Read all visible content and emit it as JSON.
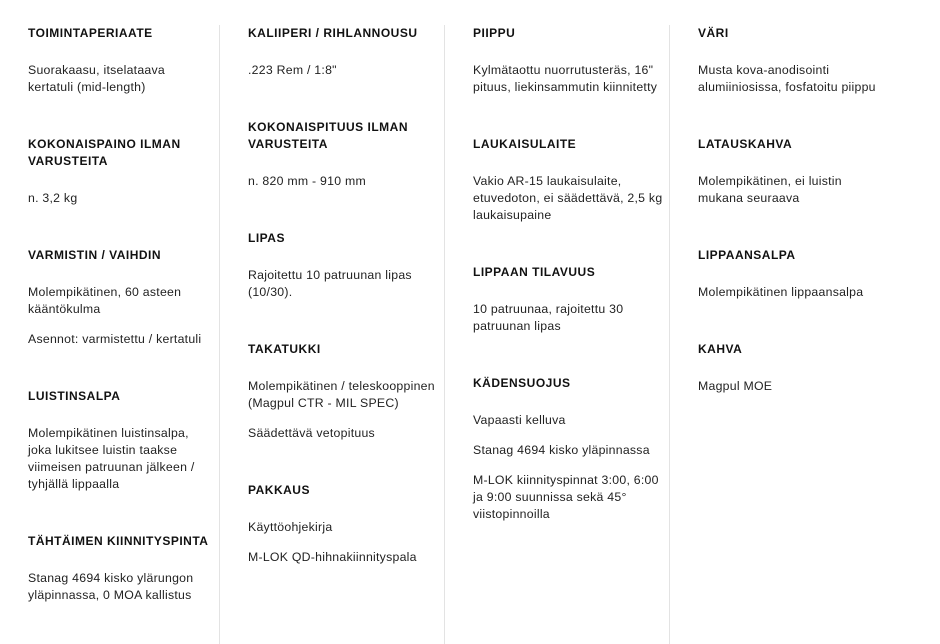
{
  "columns": [
    {
      "sections": [
        {
          "heading": "TOIMINTAPERIAATE",
          "paragraphs": [
            "Suorakaasu, itselataava kertatuli (mid-length)"
          ]
        },
        {
          "heading": "KOKONAISPAINO ILMAN VARUSTEITA",
          "paragraphs": [
            "n. 3,2 kg"
          ]
        },
        {
          "heading": "VARMISTIN / VAIHDIN",
          "paragraphs": [
            "Molempikätinen, 60 asteen kääntökulma",
            "Asennot: varmistettu / kertatuli"
          ]
        },
        {
          "heading": "LUISTINSALPA",
          "paragraphs": [
            "Molempikätinen luistinsalpa, joka lukitsee luistin taakse viimeisen patruunan jälkeen / tyhjällä lippaalla"
          ]
        },
        {
          "heading": "TÄHTÄIMEN KIINNITYSPINTA",
          "paragraphs": [
            "Stanag 4694 kisko ylärungon yläpinnassa, 0 MOA kallistus"
          ]
        }
      ]
    },
    {
      "sections": [
        {
          "heading": "KALIIPERI / RIHLANNOUSU",
          "paragraphs": [
            ".223 Rem / 1:8\""
          ]
        },
        {
          "heading": "KOKONAISPITUUS ILMAN VARUSTEITA",
          "paragraphs": [
            "n. 820 mm - 910 mm"
          ]
        },
        {
          "heading": "LIPAS",
          "paragraphs": [
            "Rajoitettu 10 patruunan lipas (10/30)."
          ]
        },
        {
          "heading": "TAKATUKKI",
          "paragraphs": [
            "Molempikätinen / teleskooppinen (Magpul CTR - MIL SPEC)",
            "Säädettävä vetopituus"
          ]
        },
        {
          "heading": "PAKKAUS",
          "paragraphs": [
            "Käyttöohjekirja",
            "M-LOK QD-hihnakiinnityspala"
          ]
        }
      ]
    },
    {
      "sections": [
        {
          "heading": "PIIPPU",
          "paragraphs": [
            "Kylmätaottu nuorrutusteräs, 16\" pituus, liekinsammutin kiinnitetty"
          ]
        },
        {
          "heading": "LAUKAISULAITE",
          "paragraphs": [
            "Vakio AR-15 laukaisulaite, etuvedoton, ei säädettävä, 2,5 kg laukaisupaine"
          ]
        },
        {
          "heading": "LIPPAAN TILAVUUS",
          "paragraphs": [
            "10 patruunaa, rajoitettu 30 patruunan lipas"
          ]
        },
        {
          "heading": "KÄDENSUOJUS",
          "paragraphs": [
            "Vapaasti kelluva",
            "Stanag 4694 kisko yläpinnassa",
            "M-LOK kiinnityspinnat 3:00, 6:00 ja 9:00 suunnissa sekä 45° viistopinnoilla"
          ]
        }
      ]
    },
    {
      "sections": [
        {
          "heading": "VÄRI",
          "paragraphs": [
            "Musta kova-anodisointi alumiiniosissa, fosfatoitu piippu"
          ]
        },
        {
          "heading": "LATAUSKAHVA",
          "paragraphs": [
            "Molempikätinen, ei luistin mukana seuraava"
          ]
        },
        {
          "heading": "LIPPAANSALPA",
          "paragraphs": [
            "Molempikätinen lippaansalpa"
          ]
        },
        {
          "heading": "KAHVA",
          "paragraphs": [
            "Magpul MOE"
          ]
        }
      ]
    }
  ]
}
